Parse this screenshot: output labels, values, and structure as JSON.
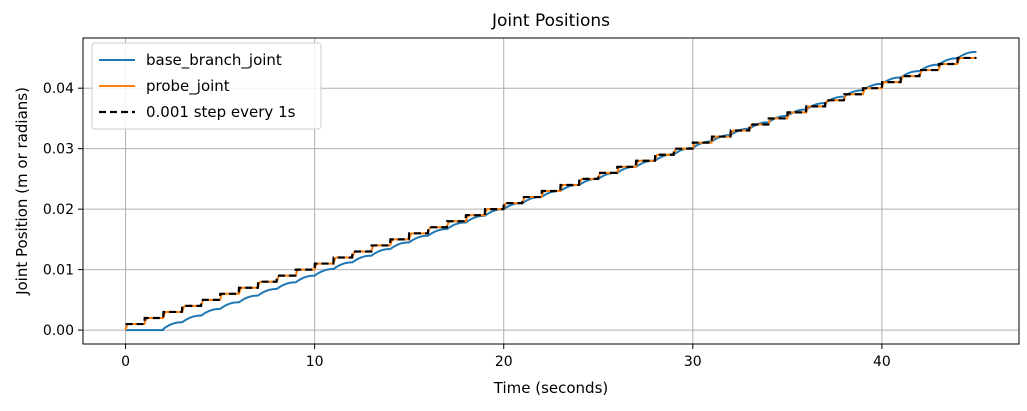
{
  "chart_data": {
    "type": "line",
    "title": "Joint Positions",
    "xlabel": "Time (seconds)",
    "ylabel": "Joint Position (m or radians)",
    "xlim": [
      -2.25,
      47.25
    ],
    "ylim": [
      -0.0023,
      0.0483
    ],
    "xticks": [
      0,
      10,
      20,
      30,
      40
    ],
    "xtick_labels": [
      "0",
      "10",
      "20",
      "30",
      "40"
    ],
    "yticks": [
      0.0,
      0.01,
      0.02,
      0.03,
      0.04
    ],
    "ytick_labels": [
      "0.00",
      "0.01",
      "0.02",
      "0.03",
      "0.04"
    ],
    "grid": true,
    "legend_position": "top-left",
    "step_interval_s": 1,
    "step_size": 0.001,
    "t_end": 45,
    "series": [
      {
        "name": "base_branch_joint",
        "color": "#1f77b4",
        "style": "solid",
        "delay_s": 0.9,
        "start_s": 2.0,
        "end_value": 0.046
      },
      {
        "name": "probe_joint",
        "color": "#ff7f0e",
        "style": "solid",
        "delay_s": 0.15,
        "start_s": 0.0,
        "end_value": 0.045
      },
      {
        "name": "0.001 step every 1s",
        "color": "#000000",
        "style": "dashed",
        "delay_s": 0.0,
        "start_s": 0.0,
        "end_value": 0.045
      }
    ]
  }
}
